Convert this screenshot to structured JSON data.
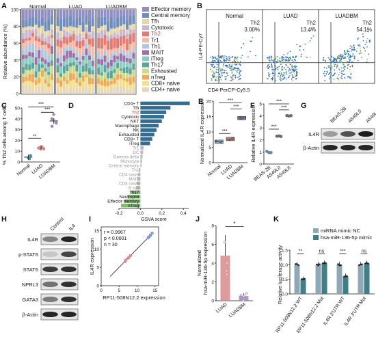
{
  "panels": {
    "A": {
      "letter": "A",
      "ylabel": "Relative abundance (%)",
      "yticks": [
        "100",
        "80",
        "60",
        "40",
        "20",
        "0"
      ],
      "groups": [
        "Normal",
        "LUAD",
        "LUADBM"
      ],
      "bars_per_group": [
        10,
        12,
        12
      ],
      "legend": [
        {
          "label": "Effector memory",
          "color": "#8f8fc4",
          "highlight": false
        },
        {
          "label": "Central memory",
          "color": "#6f8fba",
          "highlight": false
        },
        {
          "label": "Tfh",
          "color": "#e7d6a8",
          "highlight": false
        },
        {
          "label": "Cytotoxic",
          "color": "#c7b6d4",
          "highlight": false
        },
        {
          "label": "Th2",
          "color": "#e27c73",
          "highlight": true
        },
        {
          "label": "Tr1",
          "color": "#f6b9a7",
          "highlight": false
        },
        {
          "label": "Th1",
          "color": "#b3c8dd",
          "highlight": false
        },
        {
          "label": "MAIT",
          "color": "#9e6fa8",
          "highlight": false
        },
        {
          "label": "iTreg",
          "color": "#8ccdc1",
          "highlight": false
        },
        {
          "label": "Th17",
          "color": "#5ea49a",
          "highlight": false
        },
        {
          "label": "Exhausted",
          "color": "#cfd98a",
          "highlight": false
        },
        {
          "label": "nTreg",
          "color": "#f0a85a",
          "highlight": false
        },
        {
          "label": "CD8+ naive",
          "color": "#f4df8a",
          "highlight": false
        },
        {
          "label": "CD4+ naive",
          "color": "#e5d6c0",
          "highlight": false
        }
      ]
    },
    "B": {
      "letter": "B",
      "xlabel": "CD4-PerCP-Cy5.5",
      "ylabel": "IL4-PE-Cy7",
      "plots": [
        {
          "title": "Normal",
          "gate_label": "Th2",
          "percent": "3.00%",
          "density": 0.03
        },
        {
          "title": "LUAD",
          "gate_label": "Th2",
          "percent": "13.4%",
          "density": 0.134
        },
        {
          "title": "LUADBM",
          "gate_label": "Th2",
          "percent": "54.1%",
          "density": 0.541
        }
      ]
    },
    "C": {
      "letter": "C",
      "ylabel": "% Th2 cells among T cells",
      "yticks": [
        "0",
        "10",
        "20",
        "30",
        "40",
        "50"
      ],
      "categories": [
        "Normal",
        "LUAD",
        "LUADBM"
      ],
      "values": [
        4.5,
        13,
        38
      ],
      "points": [
        [
          3,
          4,
          5,
          6,
          4.5
        ],
        [
          12,
          13,
          14,
          12.5,
          13.5
        ],
        [
          33,
          36,
          40,
          44,
          38
        ]
      ],
      "colors": [
        "#5f8a96",
        "#d98a8a",
        "#9b86b5"
      ],
      "sig": [
        "**",
        "***",
        "***"
      ]
    },
    "D": {
      "letter": "D",
      "xlabel": "GSVA score",
      "xticks": [
        "-0.2",
        "0.0",
        "0.2",
        "0.4"
      ],
      "bars": [
        {
          "label": "CD4+ T",
          "value": 0.46,
          "group": "blue"
        },
        {
          "label": "Tfh",
          "value": 0.28,
          "group": "blue"
        },
        {
          "label": "Th2",
          "value": 0.24,
          "group": "blue",
          "highlight": true
        },
        {
          "label": "Cytotoxic",
          "value": 0.22,
          "group": "blue"
        },
        {
          "label": "NKT",
          "value": 0.2,
          "group": "blue"
        },
        {
          "label": "Macrophage",
          "value": 0.17,
          "group": "blue"
        },
        {
          "label": "NK",
          "value": 0.15,
          "group": "blue"
        },
        {
          "label": "Exhausted",
          "value": 0.13,
          "group": "blue"
        },
        {
          "label": "CD8+ T",
          "value": 0.11,
          "group": "blue"
        },
        {
          "label": "iTreg",
          "value": 0.09,
          "group": "blue"
        },
        {
          "label": "Tr1",
          "value": 0.03,
          "group": "gray"
        },
        {
          "label": "DC",
          "value": 0.025,
          "group": "gray"
        },
        {
          "label": "Gamma delta",
          "value": 0.02,
          "group": "gray"
        },
        {
          "label": "Monocyte",
          "value": 0.015,
          "group": "gray"
        },
        {
          "label": "Central memory",
          "value": 0.01,
          "group": "gray"
        },
        {
          "label": "Th1",
          "value": -0.015,
          "group": "gray"
        },
        {
          "label": "CD4 naive",
          "value": -0.02,
          "group": "gray"
        },
        {
          "label": "MAIT",
          "value": -0.03,
          "group": "gray"
        },
        {
          "label": "CD8 naive",
          "value": -0.035,
          "group": "gray"
        },
        {
          "label": "B cell",
          "value": -0.04,
          "group": "gray"
        },
        {
          "label": "Th17",
          "value": -0.09,
          "group": "green"
        },
        {
          "label": "Neutrophil",
          "value": -0.12,
          "group": "green"
        },
        {
          "label": "Effector memory",
          "value": -0.15,
          "group": "green"
        },
        {
          "label": "nTreg",
          "value": -0.18,
          "group": "green"
        }
      ],
      "colors": {
        "blue": "#336e91",
        "gray": "#b8b8b8",
        "green": "#82b774"
      }
    },
    "E": {
      "letter": "E",
      "ylabel": "Normalized IL4R expression",
      "yticks": [
        "0",
        "5",
        "10",
        "15",
        "20"
      ],
      "categories": [
        "Normal",
        "LUAD",
        "LUADBM"
      ],
      "values": [
        6.8,
        7.7,
        14.5
      ],
      "colors": [
        "#8fb3c8",
        "#d98a8a",
        "#9b86b5"
      ],
      "sig": [
        "***",
        "***",
        "***"
      ]
    },
    "F": {
      "letter": "F",
      "ylabel": "Relative IL4R expression",
      "yticks": [
        "0",
        "1",
        "2",
        "3",
        "4",
        "5"
      ],
      "categories": [
        "BEAS-2B",
        "A549L0",
        "A549L6"
      ],
      "values": [
        1.0,
        2.3,
        4.0
      ],
      "colors": [
        "#5f8a96",
        "#6a6a6a",
        "#6a6a6a"
      ],
      "sig": [
        "***",
        "***",
        "***"
      ]
    },
    "G": {
      "letter": "G",
      "columns": [
        "BEAS-2B",
        "A549L0",
        "A549L6"
      ],
      "rows": [
        "IL4R",
        "β-Actin"
      ]
    },
    "H": {
      "letter": "H",
      "columns": [
        "Control",
        "IL4"
      ],
      "rows": [
        "IL4R",
        "p-STAT6",
        "STAT6",
        "NPRL3",
        "GATA3",
        "β-Actin"
      ]
    },
    "I": {
      "letter": "I",
      "xlabel": "RP11-508N12.2 expression",
      "ylabel": "IL4R expression",
      "xticks": [
        "0",
        "5",
        "10",
        "15"
      ],
      "yticks": [
        "0",
        "5",
        "10",
        "15"
      ],
      "stats": [
        "r = 0.9967",
        "p < 0.0001",
        "n = 30"
      ]
    },
    "J": {
      "letter": "J",
      "ylabel1": "Normalized",
      "ylabel2": "hsa-miR-136-5p expression",
      "yticks": [
        "0",
        "2",
        "4",
        "6",
        "8"
      ],
      "categories": [
        "LUAD",
        "LUADBM"
      ],
      "values": [
        4.8,
        0.5
      ],
      "colors": [
        "#d98a8a",
        "#9b86b5"
      ],
      "sig": "*"
    },
    "K": {
      "letter": "K",
      "ylabel": "Relative luciferase activity",
      "yticks": [
        "0.0",
        "0.5",
        "1.0",
        "1.5"
      ],
      "legend": [
        {
          "label": "miRNA mimic NC",
          "color": "#8fa8b5"
        },
        {
          "label": "hsa-miR-136-5p mimic",
          "color": "#3f7f85"
        }
      ],
      "categories": [
        "RP11-508N12.2 WT",
        "RP11-508N12.2 Mut",
        "IL4R 3'UTR WT",
        "IL4R 3'UTR Mut"
      ],
      "series": [
        {
          "name": "miRNA mimic NC",
          "values": [
            1.0,
            1.0,
            1.0,
            1.0
          ]
        },
        {
          "name": "hsa-miR-136-5p mimic",
          "values": [
            0.5,
            1.05,
            0.6,
            1.05
          ]
        }
      ],
      "sig": [
        "**",
        "ns",
        "***",
        "ns"
      ]
    }
  }
}
